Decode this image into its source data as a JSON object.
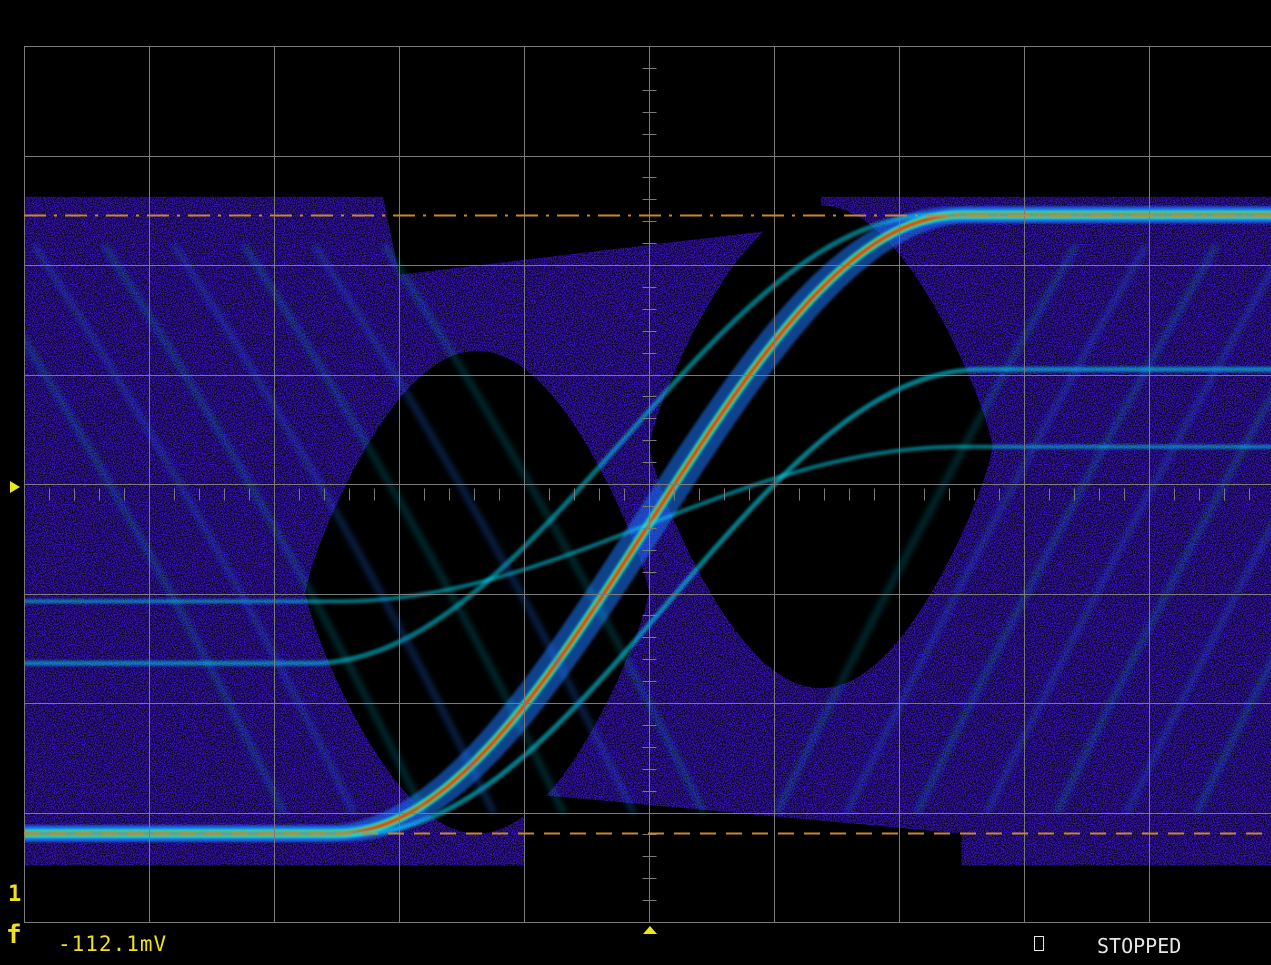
{
  "status": {
    "channel_number": "1",
    "trigger_slope_symbol": "f",
    "trigger_level_readout": "-112.1mV",
    "run_state": "STOPPED"
  },
  "colors": {
    "background": "#000000",
    "graticule": "#7a7a7a",
    "cursor": "#c8892a",
    "marker": "#e8e81a",
    "channel_label": "#f0e020",
    "status_text": "#e6e6e6",
    "persistence_low": "#3c14c8",
    "persistence_mid": "#1e78ff",
    "persistence_high": "#00e6ff",
    "persistence_hot": "#50ff40",
    "persistence_peak": "#ff2010"
  },
  "chart_data": {
    "type": "eye-diagram",
    "grid": true,
    "graticule_divisions": {
      "x": 10,
      "y": 8
    },
    "cursors": [
      {
        "name": "upper",
        "style": "dash-dot",
        "level_div": 2.55
      },
      {
        "name": "lower",
        "style": "dashed",
        "level_div": -3.1
      }
    ],
    "eye": {
      "crossing_div": {
        "x": 0.0,
        "y": 0.0
      },
      "high_level_div": 2.55,
      "low_level_div": -3.1,
      "bit_period_div": 5.0
    }
  }
}
